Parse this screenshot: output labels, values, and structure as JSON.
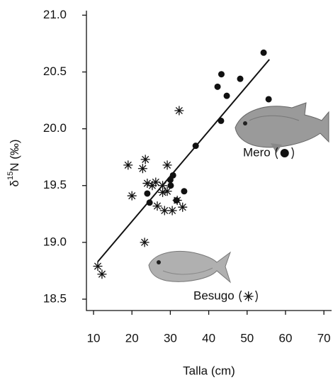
{
  "chart_data": {
    "type": "scatter",
    "x_label": "Talla (cm)",
    "y_label": {
      "prefix": "δ",
      "sup": "15",
      "suffix": "N (‰)"
    },
    "xlim": [
      8.15,
      72
    ],
    "ylim": [
      18.4,
      21.04
    ],
    "xticks": [
      10,
      20,
      30,
      40,
      50,
      60,
      70
    ],
    "yticks": [
      {
        "value": 21,
        "label": "21.0"
      },
      20.5,
      {
        "value": 20,
        "label": "20.0"
      },
      19.5,
      {
        "value": 19,
        "label": "19.0"
      },
      18.5
    ],
    "series": [
      {
        "name": "Mero",
        "marker": "circle",
        "color": "#111111",
        "x": [
          54.3,
          43.3,
          42.3,
          48.2,
          55.6,
          44.7,
          43.2,
          36.6,
          30.7,
          30.0,
          30.1,
          24.0,
          24.6,
          31.6,
          33.6
        ],
        "values": [
          20.67,
          20.48,
          20.37,
          20.44,
          20.26,
          20.29,
          20.07,
          19.85,
          19.59,
          19.55,
          19.5,
          19.43,
          19.35,
          19.37,
          19.45
        ]
      },
      {
        "name": "Besugo",
        "marker": "asterisk",
        "color": "#111111",
        "x": [
          32.3,
          23.5,
          19.0,
          22.8,
          29.2,
          20.0,
          24.0,
          25.3,
          26.2,
          28.0,
          29.2,
          28.0,
          26.6,
          28.5,
          30.5,
          31.8,
          33.2,
          23.3,
          11.1,
          12.2
        ],
        "values": [
          20.16,
          19.73,
          19.68,
          19.65,
          19.68,
          19.41,
          19.52,
          19.5,
          19.53,
          19.5,
          19.45,
          19.44,
          19.32,
          19.28,
          19.28,
          19.37,
          19.31,
          19.0,
          18.79,
          18.72
        ]
      }
    ],
    "trendline": {
      "x": [
        11.1,
        55.8
      ],
      "values": [
        18.83,
        20.61
      ],
      "color": "#111111"
    }
  }
}
